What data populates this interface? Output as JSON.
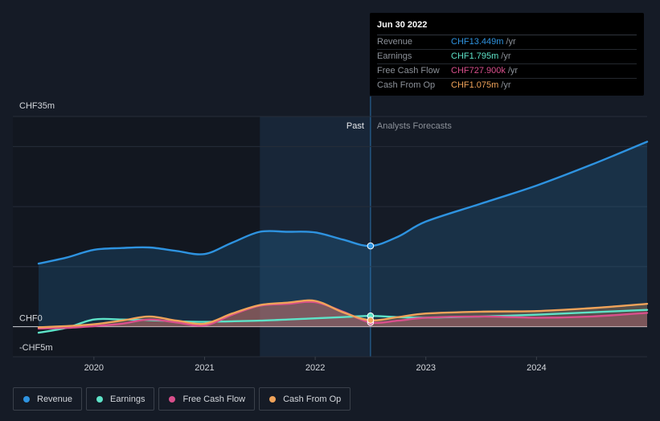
{
  "chart_data": {
    "type": "line",
    "title": "",
    "xlabel": "",
    "ylabel": "",
    "currency": "CHF",
    "ylim": [
      -5,
      35
    ],
    "xlim": [
      2019.5,
      2025.0
    ],
    "y_tick_labels": [
      {
        "value": 35,
        "label": "CHF35m"
      },
      {
        "value": 0,
        "label": "CHF0"
      },
      {
        "value": -5,
        "label": "-CHF5m"
      }
    ],
    "x_tick_labels": [
      {
        "value": 2020,
        "label": "2020"
      },
      {
        "value": 2021,
        "label": "2021"
      },
      {
        "value": 2022,
        "label": "2022"
      },
      {
        "value": 2023,
        "label": "2023"
      },
      {
        "value": 2024,
        "label": "2024"
      }
    ],
    "past_label": "Past",
    "forecast_label": "Analysts Forecasts",
    "divider_x": 2022.5,
    "shaded_past_start": 2021.5,
    "series": [
      {
        "name": "Revenue",
        "color": "#2e93e0",
        "area": true,
        "points": [
          [
            2019.5,
            10.5
          ],
          [
            2019.75,
            11.5
          ],
          [
            2020.0,
            12.8
          ],
          [
            2020.25,
            13.1
          ],
          [
            2020.5,
            13.2
          ],
          [
            2020.75,
            12.6
          ],
          [
            2021.0,
            12.1
          ],
          [
            2021.25,
            14.0
          ],
          [
            2021.5,
            15.8
          ],
          [
            2021.75,
            15.8
          ],
          [
            2022.0,
            15.7
          ],
          [
            2022.25,
            14.5
          ],
          [
            2022.5,
            13.449
          ],
          [
            2022.75,
            15.0
          ],
          [
            2023.0,
            17.5
          ],
          [
            2023.5,
            20.5
          ],
          [
            2024.0,
            23.5
          ],
          [
            2024.5,
            27.0
          ],
          [
            2025.0,
            30.8
          ]
        ]
      },
      {
        "name": "Earnings",
        "color": "#5ee3c8",
        "area": false,
        "points": [
          [
            2019.5,
            -1.0
          ],
          [
            2019.75,
            -0.2
          ],
          [
            2020.0,
            1.2
          ],
          [
            2020.25,
            1.2
          ],
          [
            2020.5,
            1.1
          ],
          [
            2020.75,
            0.9
          ],
          [
            2021.0,
            0.8
          ],
          [
            2021.25,
            0.9
          ],
          [
            2021.5,
            1.0
          ],
          [
            2021.75,
            1.2
          ],
          [
            2022.0,
            1.4
          ],
          [
            2022.25,
            1.6
          ],
          [
            2022.5,
            1.795
          ],
          [
            2022.75,
            1.6
          ],
          [
            2023.0,
            1.5
          ],
          [
            2023.5,
            1.7
          ],
          [
            2024.0,
            2.0
          ],
          [
            2024.5,
            2.4
          ],
          [
            2025.0,
            2.8
          ]
        ]
      },
      {
        "name": "Free Cash Flow",
        "color": "#d94f8c",
        "area": true,
        "points": [
          [
            2019.5,
            -0.3
          ],
          [
            2019.75,
            -0.2
          ],
          [
            2020.0,
            0.1
          ],
          [
            2020.25,
            0.5
          ],
          [
            2020.5,
            1.2
          ],
          [
            2020.75,
            0.7
          ],
          [
            2021.0,
            0.2
          ],
          [
            2021.25,
            2.0
          ],
          [
            2021.5,
            3.5
          ],
          [
            2021.75,
            3.8
          ],
          [
            2022.0,
            4.1
          ],
          [
            2022.25,
            2.5
          ],
          [
            2022.5,
            0.728
          ],
          [
            2022.75,
            1.0
          ],
          [
            2023.0,
            1.5
          ],
          [
            2023.5,
            1.7
          ],
          [
            2024.0,
            1.5
          ],
          [
            2024.5,
            1.7
          ],
          [
            2025.0,
            2.3
          ]
        ]
      },
      {
        "name": "Cash From Op",
        "color": "#f0a35a",
        "area": true,
        "points": [
          [
            2019.5,
            -0.1
          ],
          [
            2019.75,
            0.1
          ],
          [
            2020.0,
            0.4
          ],
          [
            2020.25,
            1.0
          ],
          [
            2020.5,
            1.7
          ],
          [
            2020.75,
            1.0
          ],
          [
            2021.0,
            0.5
          ],
          [
            2021.25,
            2.2
          ],
          [
            2021.5,
            3.6
          ],
          [
            2021.75,
            4.0
          ],
          [
            2022.0,
            4.3
          ],
          [
            2022.25,
            2.4
          ],
          [
            2022.5,
            1.075
          ],
          [
            2022.75,
            1.6
          ],
          [
            2023.0,
            2.2
          ],
          [
            2023.5,
            2.5
          ],
          [
            2024.0,
            2.6
          ],
          [
            2024.5,
            3.1
          ],
          [
            2025.0,
            3.8
          ]
        ]
      }
    ]
  },
  "tooltip": {
    "date": "Jun 30 2022",
    "rows": [
      {
        "name": "Revenue",
        "value": "CHF13.449m",
        "unit": "/yr",
        "color": "#2e93e0"
      },
      {
        "name": "Earnings",
        "value": "CHF1.795m",
        "unit": "/yr",
        "color": "#5ee3c8"
      },
      {
        "name": "Free Cash Flow",
        "value": "CHF727.900k",
        "unit": "/yr",
        "color": "#d94f8c"
      },
      {
        "name": "Cash From Op",
        "value": "CHF1.075m",
        "unit": "/yr",
        "color": "#f0a35a"
      }
    ]
  },
  "legend": [
    {
      "label": "Revenue",
      "color": "#2e93e0"
    },
    {
      "label": "Earnings",
      "color": "#5ee3c8"
    },
    {
      "label": "Free Cash Flow",
      "color": "#d94f8c"
    },
    {
      "label": "Cash From Op",
      "color": "#f0a35a"
    }
  ]
}
